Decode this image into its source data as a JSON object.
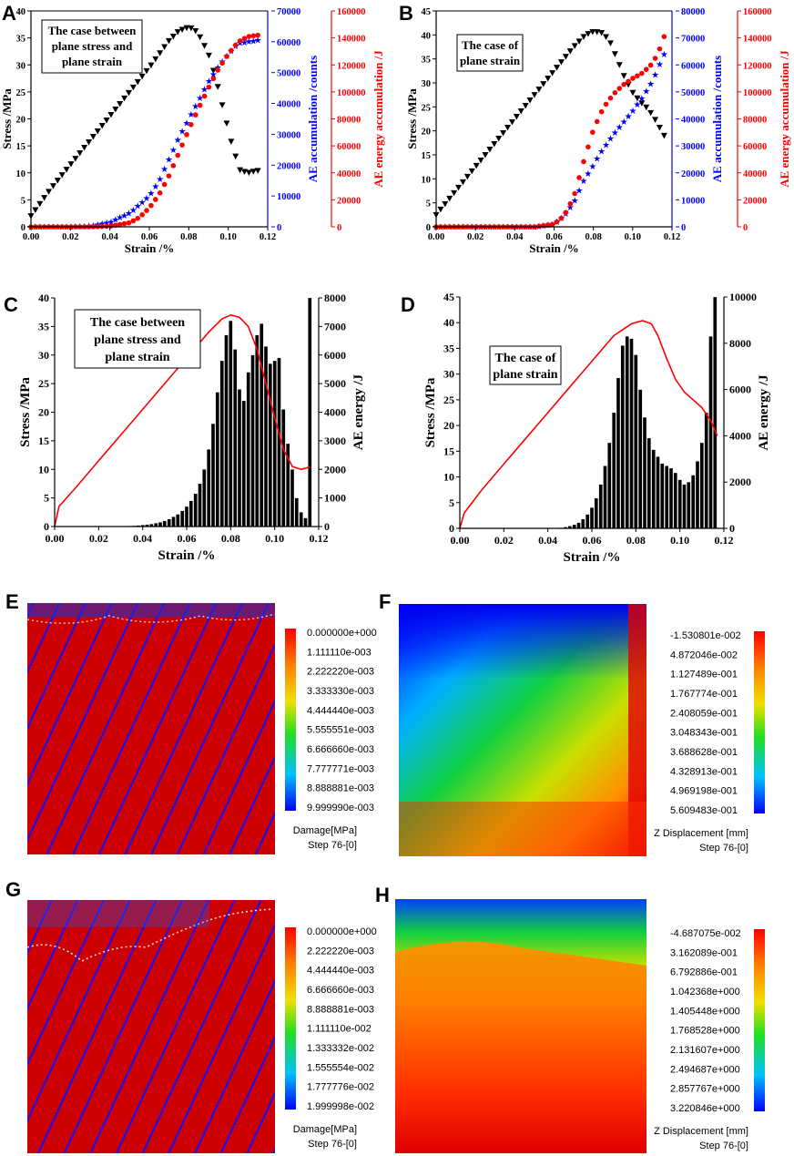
{
  "panels": {
    "A": {
      "letter": "A",
      "caption_lines": [
        "The case between",
        "plane stress and",
        "plane strain"
      ]
    },
    "B": {
      "letter": "B",
      "caption_lines": [
        "The case of",
        "plane strain"
      ]
    },
    "C": {
      "letter": "C",
      "caption_lines": [
        "The case between",
        "plane stress and",
        "plane strain"
      ]
    },
    "D": {
      "letter": "D",
      "caption_lines": [
        "The case of",
        "plane strain"
      ]
    },
    "E": {
      "letter": "E",
      "legend_title": "Damage[MPa]",
      "legend_step": "Step 76-[0]",
      "legend_values": [
        "0.000000e+000",
        "1.111110e-003",
        "2.222220e-003",
        "3.333330e-003",
        "4.444440e-003",
        "5.555551e-003",
        "6.666660e-003",
        "7.777771e-003",
        "8.888881e-003",
        "9.999990e-003"
      ]
    },
    "F": {
      "letter": "F",
      "legend_title": "Z Displacement [mm]",
      "legend_step": "Step 76-[0]",
      "legend_values": [
        "-1.530801e-002",
        "4.872046e-002",
        "1.127489e-001",
        "1.767774e-001",
        "2.408059e-001",
        "3.048343e-001",
        "3.688628e-001",
        "4.328913e-001",
        "4.969198e-001",
        "5.609483e-001"
      ]
    },
    "G": {
      "letter": "G",
      "legend_title": "Damage[MPa]",
      "legend_step": "Step 76-[0]",
      "legend_values": [
        "0.000000e+000",
        "2.222220e-003",
        "4.444440e-003",
        "6.666660e-003",
        "8.888881e-003",
        "1.111110e-002",
        "1.333332e-002",
        "1.555554e-002",
        "1.777776e-002",
        "1.999998e-002"
      ]
    },
    "H": {
      "letter": "H",
      "legend_title": "Z Displacement [mm]",
      "legend_step": "Step 76-[0]",
      "legend_values": [
        "-4.687075e-002",
        "3.162089e-001",
        "6.792886e-001",
        "1.042368e+000",
        "1.405448e+000",
        "1.768528e+000",
        "2.131607e+000",
        "2.494687e+000",
        "2.857767e+000",
        "3.220846e+000"
      ]
    }
  },
  "chart_data": [
    {
      "id": "A",
      "type": "line",
      "title": "",
      "xlabel": "Strain /%",
      "xlim": [
        0,
        0.12
      ],
      "xticks": [
        0.0,
        0.02,
        0.04,
        0.06,
        0.08,
        0.1,
        0.12
      ],
      "ylabel": "Stress /MPa",
      "ylim": [
        0,
        40
      ],
      "yticks": [
        0,
        5,
        10,
        15,
        20,
        25,
        30,
        35,
        40
      ],
      "y2label": "AE accumulation /counts",
      "y2lim": [
        0,
        70000
      ],
      "y2ticks": [
        0,
        10000,
        20000,
        30000,
        40000,
        50000,
        60000,
        70000
      ],
      "y3label": "AE energy accumulation /J",
      "y3lim": [
        0,
        160000
      ],
      "y3ticks": [
        0,
        20000,
        40000,
        60000,
        80000,
        100000,
        120000,
        140000,
        160000
      ],
      "series": [
        {
          "name": "Stress",
          "axis": "y",
          "color": "#000000",
          "marker": "triangle-down",
          "x": [
            0.0,
            0.005,
            0.01,
            0.02,
            0.03,
            0.04,
            0.05,
            0.06,
            0.07,
            0.075,
            0.08,
            0.083,
            0.086,
            0.09,
            0.094,
            0.098,
            0.102,
            0.106,
            0.11,
            0.112,
            0.115
          ],
          "y": [
            2.0,
            4.5,
            7.0,
            11.5,
            16.0,
            20.5,
            25.0,
            29.5,
            34.5,
            36.3,
            37.0,
            36.5,
            35.0,
            32.0,
            27.0,
            21.0,
            15.0,
            10.5,
            10.0,
            10.2,
            10.4
          ]
        },
        {
          "name": "AE accumulation",
          "axis": "y2",
          "color": "#0000ff",
          "marker": "star",
          "x": [
            0.0,
            0.02,
            0.03,
            0.04,
            0.05,
            0.06,
            0.065,
            0.07,
            0.075,
            0.08,
            0.085,
            0.09,
            0.095,
            0.1,
            0.105,
            0.11,
            0.115
          ],
          "y": [
            0,
            0,
            300,
            1500,
            4500,
            10000,
            15000,
            22000,
            29000,
            35000,
            41000,
            47000,
            52000,
            56000,
            59500,
            60000,
            60500
          ]
        },
        {
          "name": "AE energy accumulation",
          "axis": "y3",
          "color": "#ff0000",
          "marker": "circle",
          "x": [
            0.0,
            0.03,
            0.04,
            0.05,
            0.055,
            0.06,
            0.065,
            0.07,
            0.075,
            0.08,
            0.085,
            0.09,
            0.095,
            0.1,
            0.105,
            0.11,
            0.115
          ],
          "y": [
            0,
            0,
            500,
            3000,
            7000,
            14000,
            24000,
            38000,
            55000,
            72000,
            88000,
            103000,
            117000,
            128000,
            137000,
            141000,
            142000
          ]
        }
      ]
    },
    {
      "id": "B",
      "type": "line",
      "title": "",
      "xlabel": "Strain /%",
      "xlim": [
        0,
        0.12
      ],
      "xticks": [
        0.0,
        0.02,
        0.04,
        0.06,
        0.08,
        0.1,
        0.12
      ],
      "ylabel": "Stress /MPa",
      "ylim": [
        0,
        45
      ],
      "yticks": [
        0,
        5,
        10,
        15,
        20,
        25,
        30,
        35,
        40,
        45
      ],
      "y2label": "AE accumulation /counts",
      "y2lim": [
        0,
        80000
      ],
      "y2ticks": [
        0,
        10000,
        20000,
        30000,
        40000,
        50000,
        60000,
        70000,
        80000
      ],
      "y3label": "AE energy accumulation /J",
      "y3lim": [
        0,
        160000
      ],
      "y3ticks": [
        0,
        20000,
        40000,
        60000,
        80000,
        100000,
        120000,
        140000,
        160000
      ],
      "series": [
        {
          "name": "Stress",
          "axis": "y",
          "color": "#000000",
          "marker": "triangle-down",
          "x": [
            0.0,
            0.005,
            0.01,
            0.02,
            0.03,
            0.04,
            0.05,
            0.06,
            0.07,
            0.076,
            0.08,
            0.084,
            0.088,
            0.092,
            0.096,
            0.1,
            0.104,
            0.108,
            0.112,
            0.116
          ],
          "y": [
            2.5,
            5.0,
            7.5,
            12.5,
            17.5,
            22.5,
            27.5,
            32.5,
            37.5,
            40.0,
            40.7,
            40.5,
            39.0,
            35.0,
            31.0,
            28.0,
            26.0,
            24.5,
            22.0,
            19.0
          ]
        },
        {
          "name": "AE accumulation",
          "axis": "y2",
          "color": "#0000ff",
          "marker": "star",
          "x": [
            0.0,
            0.05,
            0.06,
            0.065,
            0.07,
            0.075,
            0.08,
            0.085,
            0.09,
            0.095,
            0.1,
            0.105,
            0.11,
            0.113,
            0.116
          ],
          "y": [
            0,
            0,
            1000,
            4000,
            9000,
            17000,
            23000,
            29000,
            34000,
            38500,
            43000,
            48000,
            54000,
            59000,
            64000
          ]
        },
        {
          "name": "AE energy accumulation",
          "axis": "y3",
          "color": "#ff0000",
          "marker": "circle",
          "x": [
            0.0,
            0.05,
            0.06,
            0.065,
            0.07,
            0.075,
            0.08,
            0.085,
            0.09,
            0.095,
            0.1,
            0.105,
            0.11,
            0.113,
            0.116
          ],
          "y": [
            0,
            0,
            2000,
            8000,
            22000,
            48000,
            72000,
            88000,
            98000,
            105000,
            110000,
            114000,
            121000,
            129000,
            141000
          ]
        }
      ]
    },
    {
      "id": "C",
      "type": "bar",
      "title": "",
      "xlabel": "Strain /%",
      "xlim": [
        0,
        0.12
      ],
      "xticks": [
        0.0,
        0.02,
        0.04,
        0.06,
        0.08,
        0.1,
        0.12
      ],
      "ylabel": "Stress /MPa",
      "ylim": [
        0,
        40
      ],
      "yticks": [
        0,
        5,
        10,
        15,
        20,
        25,
        30,
        35,
        40
      ],
      "y2label": "AE energy /J",
      "y2lim": [
        0,
        8000
      ],
      "y2ticks": [
        0,
        1000,
        2000,
        3000,
        4000,
        5000,
        6000,
        7000,
        8000
      ],
      "bars": {
        "name": "AE energy",
        "axis": "y2",
        "color": "#000000",
        "x": [
          0.03,
          0.032,
          0.034,
          0.036,
          0.038,
          0.04,
          0.042,
          0.044,
          0.046,
          0.048,
          0.05,
          0.052,
          0.054,
          0.056,
          0.058,
          0.06,
          0.062,
          0.064,
          0.066,
          0.068,
          0.07,
          0.072,
          0.074,
          0.076,
          0.078,
          0.08,
          0.082,
          0.084,
          0.086,
          0.088,
          0.09,
          0.092,
          0.094,
          0.096,
          0.098,
          0.1,
          0.102,
          0.104,
          0.106,
          0.108,
          0.11,
          0.112,
          0.114,
          0.116
        ],
        "values": [
          10,
          15,
          20,
          30,
          40,
          55,
          70,
          90,
          120,
          150,
          200,
          260,
          340,
          430,
          550,
          700,
          900,
          1150,
          1500,
          2000,
          2700,
          3600,
          4700,
          5800,
          6700,
          7200,
          6200,
          4800,
          4400,
          5400,
          6000,
          6700,
          7100,
          6300,
          5700,
          5800,
          5900,
          4100,
          2900,
          2000,
          1000,
          500,
          300,
          8000
        ]
      },
      "series": [
        {
          "name": "Stress",
          "axis": "y",
          "color": "#ff0000",
          "x": [
            0.0,
            0.002,
            0.01,
            0.02,
            0.03,
            0.04,
            0.05,
            0.06,
            0.07,
            0.076,
            0.08,
            0.084,
            0.088,
            0.092,
            0.096,
            0.1,
            0.104,
            0.108,
            0.112,
            0.116
          ],
          "y": [
            0,
            3.5,
            7.0,
            11.5,
            16.0,
            20.5,
            25.0,
            29.5,
            34.0,
            36.3,
            37.0,
            36.6,
            35.0,
            31.0,
            25.0,
            19.0,
            13.5,
            10.5,
            10.0,
            10.4
          ]
        }
      ]
    },
    {
      "id": "D",
      "type": "bar",
      "title": "",
      "xlabel": "Strain /%",
      "xlim": [
        0,
        0.12
      ],
      "xticks": [
        0.0,
        0.02,
        0.04,
        0.06,
        0.08,
        0.1,
        0.12
      ],
      "ylabel": "Stress /MPa",
      "ylim": [
        0,
        45
      ],
      "yticks": [
        0,
        5,
        10,
        15,
        20,
        25,
        30,
        35,
        40,
        45
      ],
      "y2label": "AE energy /J",
      "y2lim": [
        0,
        10000
      ],
      "y2ticks": [
        0,
        2000,
        4000,
        6000,
        8000,
        10000
      ],
      "bars": {
        "name": "AE energy",
        "axis": "y2",
        "color": "#000000",
        "x": [
          0.046,
          0.048,
          0.05,
          0.052,
          0.054,
          0.056,
          0.058,
          0.06,
          0.062,
          0.064,
          0.066,
          0.068,
          0.07,
          0.072,
          0.074,
          0.076,
          0.078,
          0.08,
          0.082,
          0.084,
          0.086,
          0.088,
          0.09,
          0.092,
          0.094,
          0.096,
          0.098,
          0.1,
          0.102,
          0.104,
          0.106,
          0.108,
          0.11,
          0.112,
          0.114,
          0.116
        ],
        "values": [
          30,
          60,
          100,
          160,
          250,
          400,
          600,
          900,
          1300,
          1900,
          2700,
          3700,
          5000,
          6500,
          7900,
          8300,
          8200,
          7500,
          6000,
          4800,
          3900,
          3400,
          3100,
          2800,
          2700,
          2600,
          2400,
          2100,
          1900,
          2000,
          2300,
          2900,
          3700,
          5000,
          8300,
          10000
        ]
      },
      "series": [
        {
          "name": "Stress",
          "axis": "y",
          "color": "#ff0000",
          "x": [
            0.0,
            0.002,
            0.01,
            0.02,
            0.03,
            0.04,
            0.05,
            0.06,
            0.07,
            0.078,
            0.083,
            0.087,
            0.09,
            0.094,
            0.098,
            0.102,
            0.106,
            0.11,
            0.114,
            0.117
          ],
          "y": [
            0,
            3.0,
            7.5,
            12.5,
            17.5,
            22.5,
            27.5,
            32.5,
            37.5,
            39.8,
            40.4,
            39.8,
            37.5,
            33.0,
            29.0,
            26.5,
            25.0,
            23.5,
            21.0,
            18.0
          ]
        }
      ]
    }
  ]
}
